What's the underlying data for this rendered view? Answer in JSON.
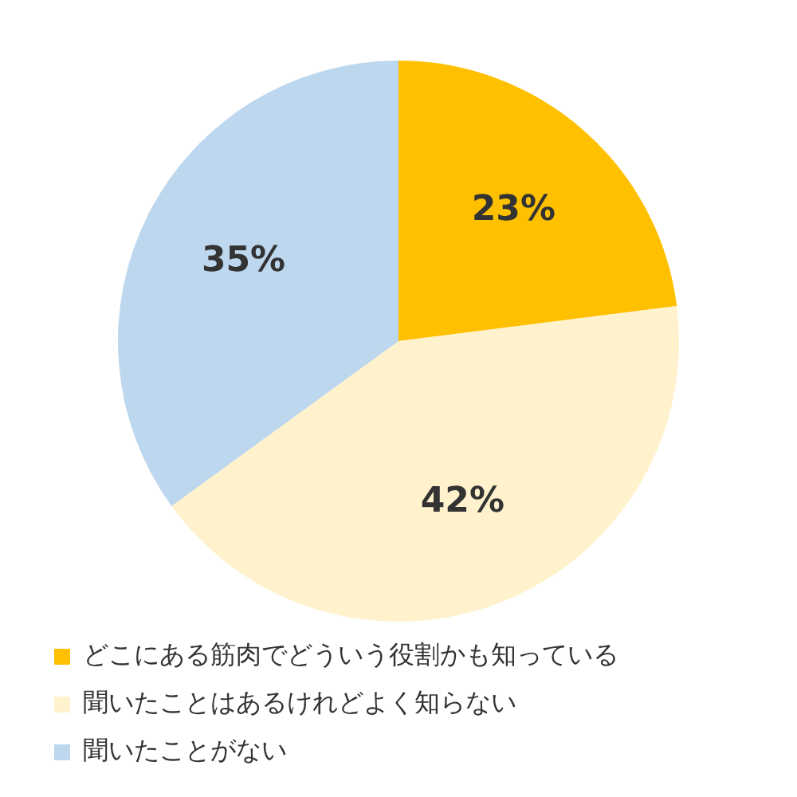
{
  "chart_data": {
    "type": "pie",
    "categories": [
      "どこにある筋肉でどういう役割かも知っている",
      "聞いたことはあるけれどよく知らない",
      "聞いたことがない"
    ],
    "values": [
      23,
      42,
      35
    ],
    "colors": [
      "#ffc000",
      "#fff2cc",
      "#bdd7ee"
    ],
    "value_labels": [
      "23%",
      "42%",
      "35%"
    ],
    "legend": "bottom"
  }
}
